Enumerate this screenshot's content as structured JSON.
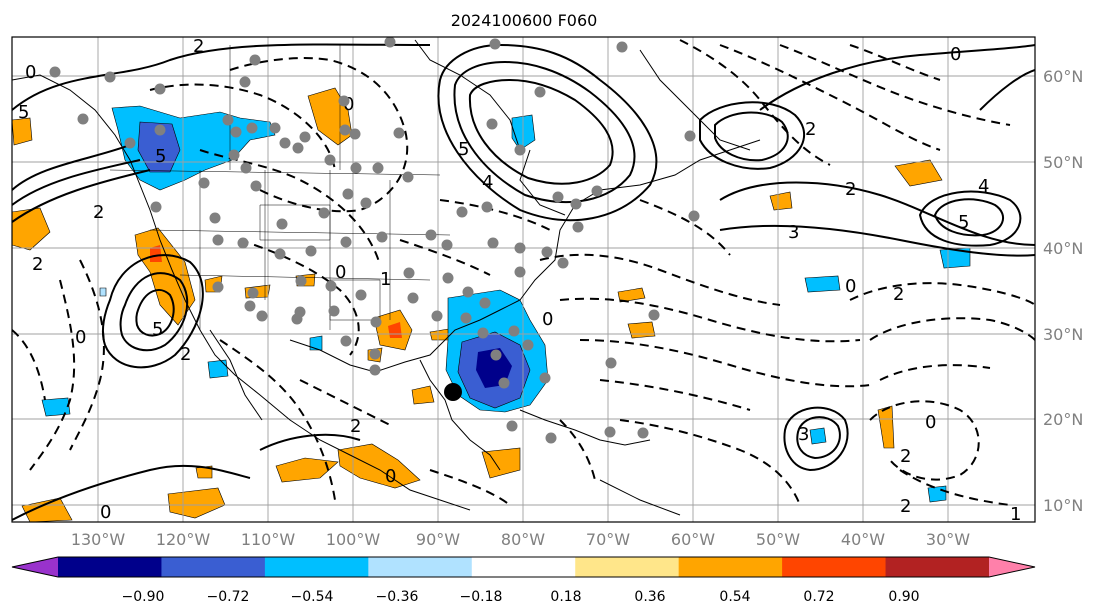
{
  "title": "2024100600 F060",
  "lon_labels": [
    "130°W",
    "120°W",
    "110°W",
    "100°W",
    "90°W",
    "80°W",
    "70°W",
    "60°W",
    "50°W",
    "40°W",
    "30°W"
  ],
  "lat_labels": [
    "60°N",
    "50°N",
    "40°N",
    "30°N",
    "20°N",
    "10°N"
  ],
  "colorbar": {
    "tick_labels": [
      "−0.90",
      "−0.72",
      "−0.54",
      "−0.36",
      "−0.18",
      "0.18",
      "0.36",
      "0.54",
      "0.72",
      "0.90"
    ],
    "colors": [
      "#9932cc",
      "#00008b",
      "#3a5ed2",
      "#00bfff",
      "#b0e2ff",
      "#ffffff",
      "#ffe68a",
      "#ffa500",
      "#ff4500",
      "#b22222",
      "#ff80aa"
    ]
  },
  "contour_labels": [
    "0",
    "2",
    "5",
    "5",
    "0",
    "2",
    "4",
    "5",
    "2",
    "0",
    "2",
    "3",
    "4",
    "5",
    "3",
    "2",
    "0",
    "5",
    "2",
    "0",
    "2",
    "0",
    "1",
    "0",
    "2",
    "0",
    "2",
    "0",
    "2",
    "0",
    "1"
  ],
  "colors": {
    "orange": "#ffa500",
    "light_blue": "#00bfff",
    "blue": "#3a5ed2",
    "dark_red": "#ff4500",
    "station_dot": "#808080",
    "storm_center": "#000000",
    "grid": "#a0a0a0"
  }
}
